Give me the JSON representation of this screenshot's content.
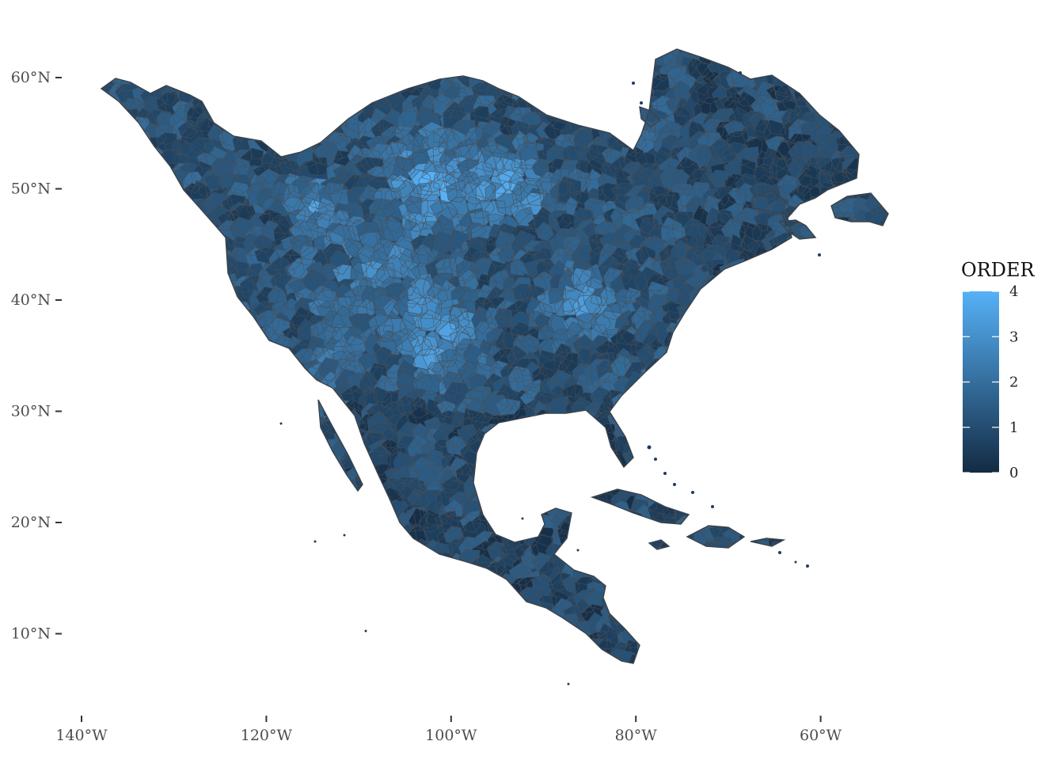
{
  "map": {
    "fill_variable": "ORDER",
    "colors": {
      "low": "#132B43",
      "high": "#56B1F7",
      "border": "#4a4f55",
      "background": "#ffffff"
    }
  },
  "y_axis": {
    "ticks": [
      {
        "value": 60,
        "label": "60°N"
      },
      {
        "value": 50,
        "label": "50°N"
      },
      {
        "value": 40,
        "label": "40°N"
      },
      {
        "value": 30,
        "label": "30°N"
      },
      {
        "value": 20,
        "label": "20°N"
      },
      {
        "value": 10,
        "label": "10°N"
      }
    ]
  },
  "x_axis": {
    "ticks": [
      {
        "value": -140,
        "label": "140°W"
      },
      {
        "value": -120,
        "label": "120°W"
      },
      {
        "value": -100,
        "label": "100°W"
      },
      {
        "value": -80,
        "label": "80°W"
      },
      {
        "value": -60,
        "label": "60°W"
      }
    ]
  },
  "legend": {
    "title": "ORDER",
    "range": [
      0,
      4
    ],
    "breaks": [
      {
        "value": 4,
        "label": "4"
      },
      {
        "value": 3,
        "label": "3"
      },
      {
        "value": 2,
        "label": "2"
      },
      {
        "value": 1,
        "label": "1"
      },
      {
        "value": 0,
        "label": "0"
      }
    ]
  }
}
